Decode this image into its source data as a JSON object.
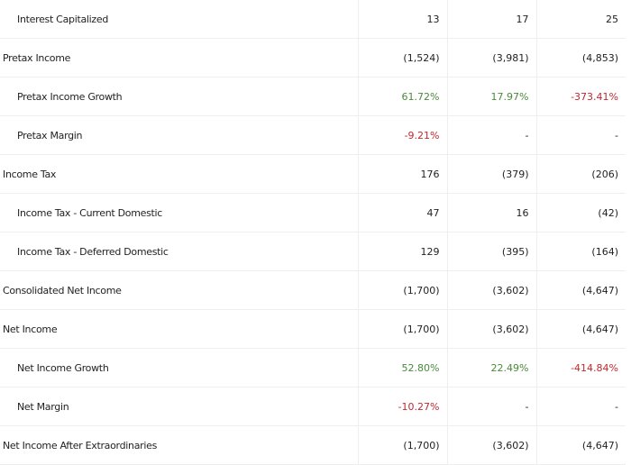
{
  "colors": {
    "positive": "#4a8a3a",
    "negative": "#c0282e"
  },
  "rows": [
    {
      "label": "Interest Capitalized",
      "indent": true,
      "values": [
        "13",
        "17",
        "25"
      ]
    },
    {
      "label": "Pretax Income",
      "indent": false,
      "values": [
        "(1,524)",
        "(3,981)",
        "(4,853)"
      ]
    },
    {
      "label": "Pretax Income Growth",
      "indent": true,
      "values": [
        "61.72%",
        "17.97%",
        "-373.41%"
      ],
      "tones": [
        "pos",
        "pos",
        "neg"
      ]
    },
    {
      "label": "Pretax Margin",
      "indent": true,
      "values": [
        "-9.21%",
        "-",
        "-"
      ],
      "tones": [
        "neg",
        "",
        ""
      ]
    },
    {
      "label": "Income Tax",
      "indent": false,
      "values": [
        "176",
        "(379)",
        "(206)"
      ]
    },
    {
      "label": "Income Tax - Current Domestic",
      "indent": true,
      "values": [
        "47",
        "16",
        "(42)"
      ]
    },
    {
      "label": "Income Tax - Deferred Domestic",
      "indent": true,
      "values": [
        "129",
        "(395)",
        "(164)"
      ]
    },
    {
      "label": "Consolidated Net Income",
      "indent": false,
      "values": [
        "(1,700)",
        "(3,602)",
        "(4,647)"
      ]
    },
    {
      "label": "Net Income",
      "indent": false,
      "values": [
        "(1,700)",
        "(3,602)",
        "(4,647)"
      ]
    },
    {
      "label": "Net Income Growth",
      "indent": true,
      "values": [
        "52.80%",
        "22.49%",
        "-414.84%"
      ],
      "tones": [
        "pos",
        "pos",
        "neg"
      ]
    },
    {
      "label": "Net Margin",
      "indent": true,
      "values": [
        "-10.27%",
        "-",
        "-"
      ],
      "tones": [
        "neg",
        "",
        ""
      ]
    },
    {
      "label": "Net Income After Extraordinaries",
      "indent": false,
      "values": [
        "(1,700)",
        "(3,602)",
        "(4,647)"
      ]
    }
  ]
}
